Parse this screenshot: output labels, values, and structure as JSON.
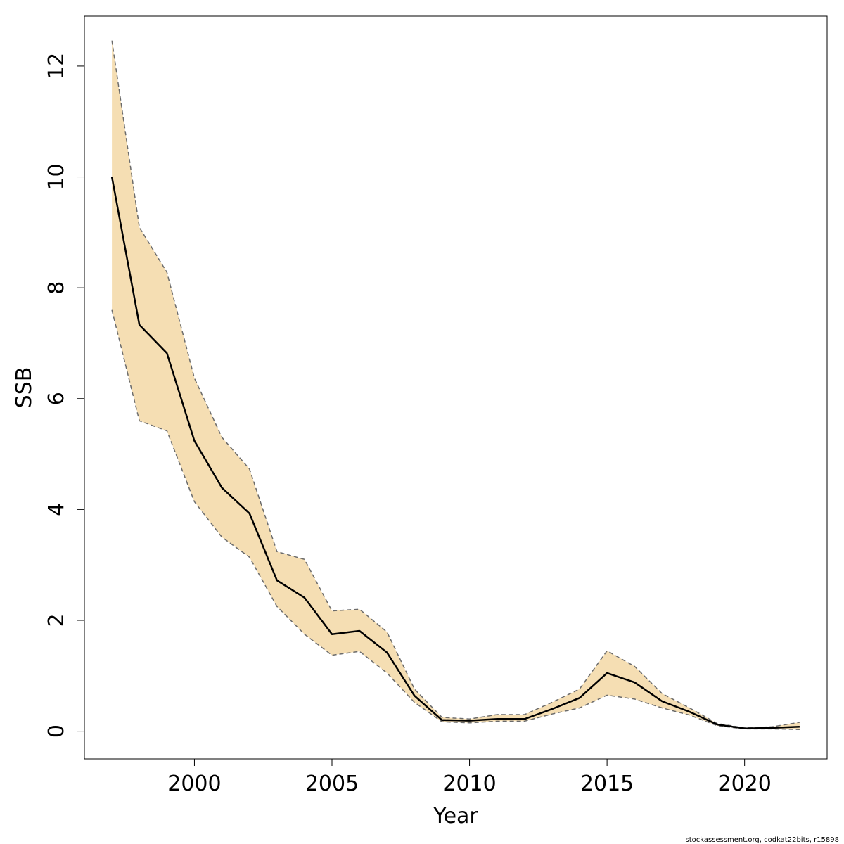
{
  "chart_data": {
    "type": "line",
    "title": "",
    "xlabel": "Year",
    "ylabel": "SSB",
    "xlim": [
      1996,
      2023
    ],
    "ylim": [
      -0.5,
      12.9
    ],
    "x_ticks": [
      2000,
      2005,
      2010,
      2015,
      2020
    ],
    "x_tick_labels": [
      "2000",
      "2005",
      "2010",
      "2015",
      "2020"
    ],
    "y_ticks": [
      0,
      2,
      4,
      6,
      8,
      10,
      12
    ],
    "y_tick_labels": [
      "0",
      "2",
      "4",
      "6",
      "8",
      "10",
      "12"
    ],
    "grid": false,
    "legend": "none",
    "x": [
      1997,
      1998,
      1999,
      2000,
      2001,
      2002,
      2003,
      2004,
      2005,
      2006,
      2007,
      2008,
      2009,
      2010,
      2011,
      2012,
      2013,
      2014,
      2015,
      2016,
      2017,
      2018,
      2019,
      2020,
      2021,
      2022
    ],
    "series": [
      {
        "role": "estimate",
        "values": [
          10.0,
          7.33,
          6.82,
          5.24,
          4.39,
          3.93,
          2.72,
          2.41,
          1.75,
          1.81,
          1.42,
          0.64,
          0.2,
          0.19,
          0.22,
          0.22,
          0.4,
          0.6,
          1.05,
          0.88,
          0.54,
          0.35,
          0.12,
          0.05,
          0.06,
          0.08
        ]
      },
      {
        "role": "upper",
        "values": [
          12.46,
          9.09,
          8.28,
          6.37,
          5.3,
          4.73,
          3.24,
          3.1,
          2.17,
          2.2,
          1.79,
          0.76,
          0.25,
          0.22,
          0.3,
          0.3,
          0.52,
          0.76,
          1.45,
          1.17,
          0.68,
          0.42,
          0.14,
          0.06,
          0.08,
          0.16
        ]
      },
      {
        "role": "lower",
        "values": [
          7.6,
          5.6,
          5.42,
          4.14,
          3.5,
          3.14,
          2.25,
          1.75,
          1.37,
          1.44,
          1.05,
          0.52,
          0.17,
          0.15,
          0.18,
          0.18,
          0.31,
          0.42,
          0.65,
          0.58,
          0.42,
          0.29,
          0.1,
          0.04,
          0.04,
          0.03
        ]
      }
    ],
    "colors": {
      "band_fill": "#f5deb3",
      "line": "#000000",
      "bound_line": "#6b6b6b",
      "frame": "#000000"
    }
  },
  "credit": "stockassessment.org, codkat22bits, r15898"
}
